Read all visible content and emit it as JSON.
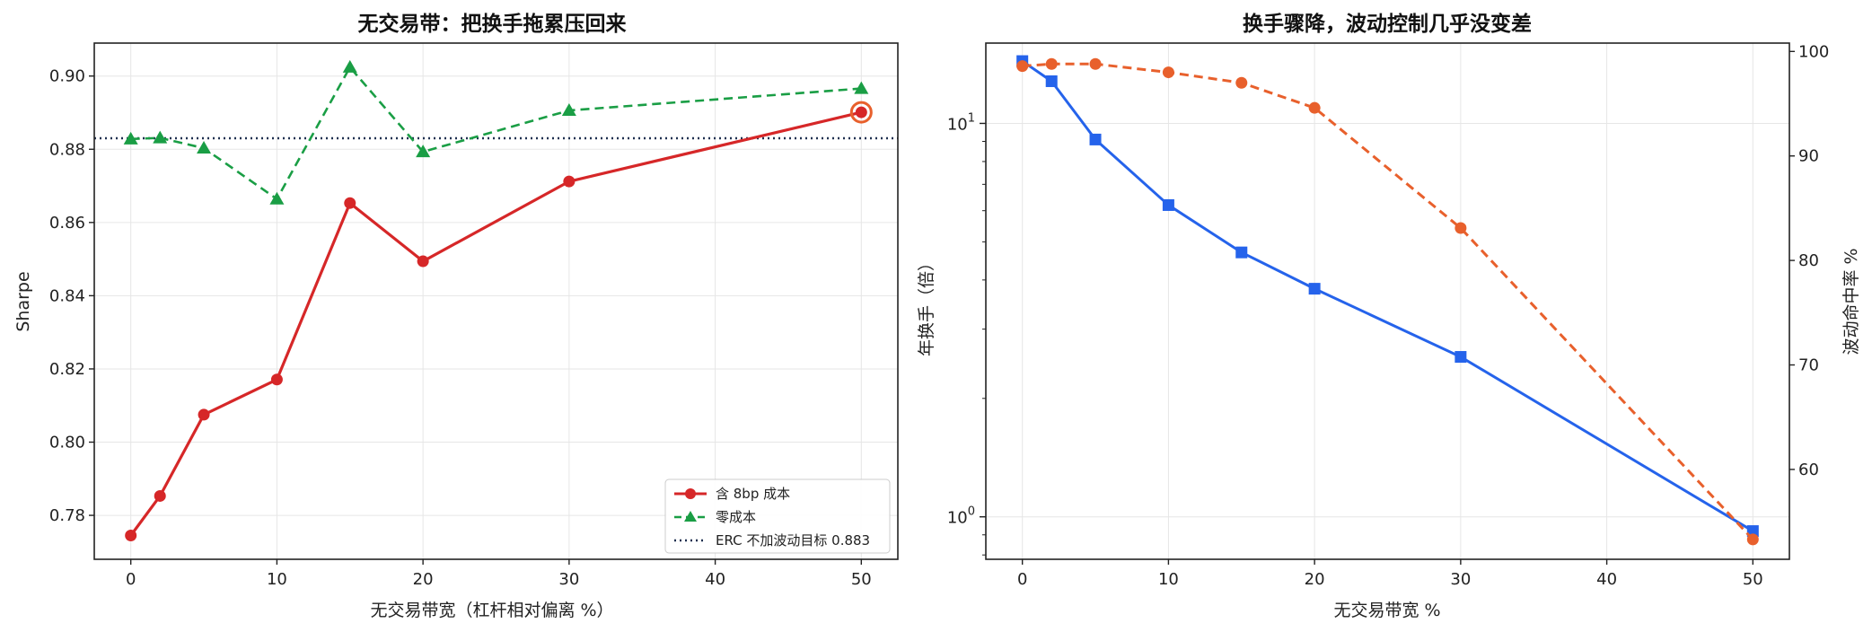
{
  "chart_data": [
    {
      "type": "line",
      "title": "无交易带：把换手拖累压回来",
      "xlabel": "无交易带宽（杠杆相对偏离 %）",
      "ylabel": "Sharpe",
      "xlim": [
        -2.5,
        52.5
      ],
      "ylim": [
        0.768,
        0.909
      ],
      "xticks": [
        "0",
        "10",
        "20",
        "30",
        "40",
        "50"
      ],
      "yticks": [
        "0.78",
        "0.80",
        "0.82",
        "0.84",
        "0.86",
        "0.88",
        "0.90"
      ],
      "grid": true,
      "legend_position": "lower-right",
      "series": [
        {
          "name": "含 8bp 成本",
          "color": "#d62728",
          "style": "solid",
          "marker": "circle",
          "x": [
            0,
            2,
            5,
            10,
            15,
            20,
            30,
            50
          ],
          "y": [
            0.7745,
            0.7853,
            0.8075,
            0.8171,
            0.8653,
            0.8494,
            0.8712,
            0.8901
          ]
        },
        {
          "name": "零成本",
          "color": "#1a9e45",
          "style": "dashed",
          "marker": "triangle",
          "x": [
            0,
            2,
            5,
            10,
            15,
            20,
            30,
            50
          ],
          "y": [
            0.8828,
            0.8831,
            0.8803,
            0.8664,
            0.9024,
            0.8793,
            0.8906,
            0.8966
          ]
        }
      ],
      "reference_line": {
        "name": "ERC 不加波动目标 0.883",
        "y": 0.883,
        "color": "#1f3050",
        "style": "dotted"
      },
      "highlight_point": {
        "x": 50,
        "y": 0.8901,
        "color": "#e8602c"
      }
    },
    {
      "type": "line",
      "title": "换手骤降，波动控制几乎没变差",
      "xlabel": "无交易带宽 %",
      "ylabel_left": "年换手（倍）",
      "ylabel_right": "波动命中率 %",
      "xlim": [
        -2.5,
        52.5
      ],
      "ylim_left_log": [
        0.78,
        16.0
      ],
      "ylim_right": [
        51.4,
        100.8
      ],
      "xticks": [
        "0",
        "10",
        "20",
        "30",
        "40",
        "50"
      ],
      "yticks_left": [
        "10^0",
        "10^1"
      ],
      "yticks_right": [
        "60",
        "70",
        "80",
        "90",
        "100"
      ],
      "grid": true,
      "series": [
        {
          "name": "年换手",
          "axis": "left",
          "scale": "log",
          "color": "#2563eb",
          "style": "solid",
          "marker": "square",
          "x": [
            0,
            2,
            5,
            10,
            15,
            20,
            30,
            50
          ],
          "y": [
            14.4,
            12.8,
            9.1,
            6.2,
            4.7,
            3.8,
            2.55,
            0.92
          ]
        },
        {
          "name": "波动命中率",
          "axis": "right",
          "color": "#e8602c",
          "style": "dashed",
          "marker": "circle",
          "x": [
            0,
            2,
            5,
            10,
            15,
            20,
            30,
            50
          ],
          "y": [
            98.6,
            98.8,
            98.8,
            98.0,
            97.0,
            94.6,
            83.1,
            53.3
          ]
        }
      ]
    }
  ]
}
